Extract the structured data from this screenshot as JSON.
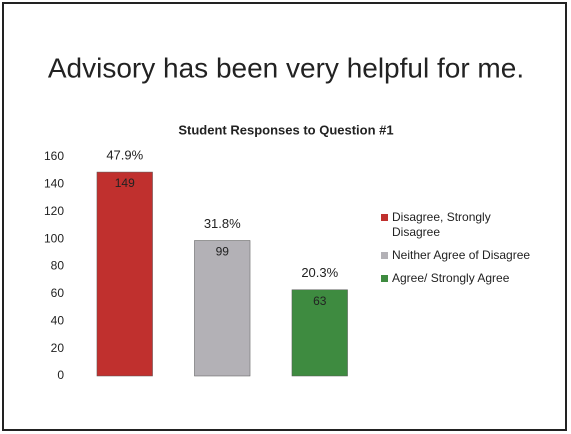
{
  "header": {
    "title": "Advisory has been very helpful for me."
  },
  "chart_data": {
    "type": "bar",
    "title": "Student Responses to Question #1",
    "categories": [
      "Disagree, Strongly Disagree",
      "Neither Agree of Disagree",
      "Agree/ Strongly Agree"
    ],
    "values": [
      149,
      99,
      63
    ],
    "annotations": [
      "47.9%",
      "31.8%",
      "20.3%"
    ],
    "colors": [
      "#c0302e",
      "#b3b1b6",
      "#3e8b40"
    ],
    "ylim": [
      0,
      160
    ],
    "yticks": [
      0,
      20,
      40,
      60,
      80,
      100,
      120,
      140,
      160
    ],
    "grid": false,
    "legend": "right"
  }
}
